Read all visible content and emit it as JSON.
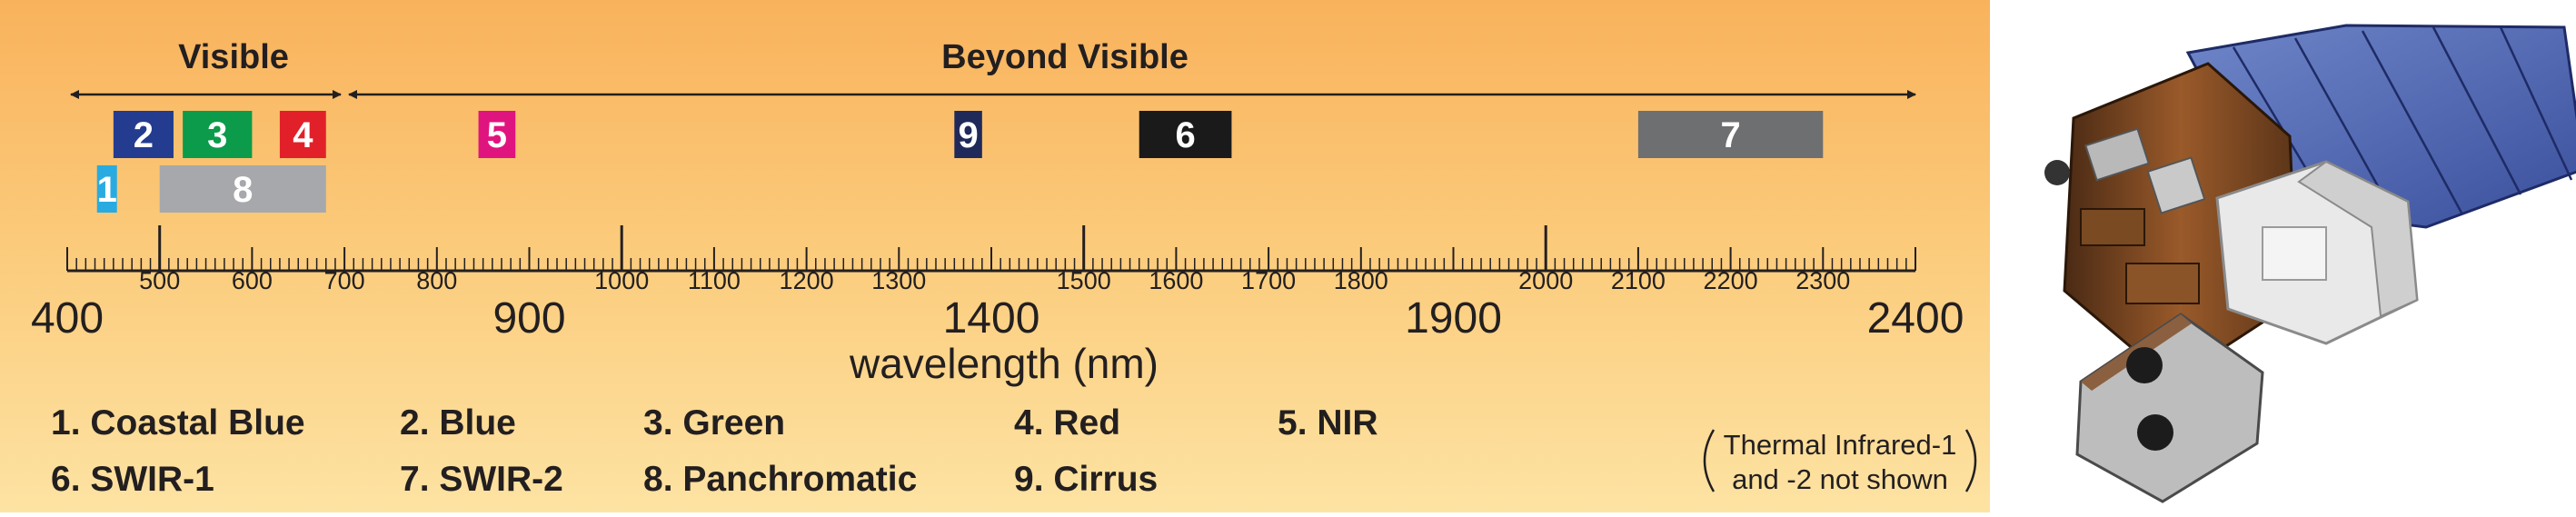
{
  "regions": {
    "visible_label": "Visible",
    "beyond_label": "Beyond Visible"
  },
  "chart_data": {
    "type": "diagram",
    "xlabel": "wavelength (nm)",
    "x_range": [
      400,
      2400
    ],
    "major_ticks": [
      400,
      900,
      1400,
      1900,
      2400
    ],
    "minor_labels": [
      500,
      600,
      700,
      800,
      1000,
      1100,
      1200,
      1300,
      1500,
      1600,
      1700,
      1800,
      2000,
      2100,
      2200,
      2300
    ],
    "bands": [
      {
        "id": "1",
        "start": 433,
        "end": 453,
        "color": "#29abe2",
        "row": 2
      },
      {
        "id": "2",
        "start": 450,
        "end": 515,
        "color": "#233c8f",
        "row": 1
      },
      {
        "id": "3",
        "start": 525,
        "end": 600,
        "color": "#0b9b4a",
        "row": 1
      },
      {
        "id": "4",
        "start": 630,
        "end": 680,
        "color": "#e2202a",
        "row": 1
      },
      {
        "id": "5",
        "start": 845,
        "end": 885,
        "color": "#e0147f",
        "row": 1
      },
      {
        "id": "6",
        "start": 1560,
        "end": 1660,
        "color": "#1a1a1a",
        "row": 1
      },
      {
        "id": "7",
        "start": 2100,
        "end": 2300,
        "color": "#6e6f71",
        "row": 1
      },
      {
        "id": "8",
        "start": 500,
        "end": 680,
        "color": "#a6a8ab",
        "row": 2
      },
      {
        "id": "9",
        "start": 1360,
        "end": 1390,
        "color": "#1f2a5a",
        "row": 1
      }
    ]
  },
  "legend": {
    "items": [
      "1. Coastal Blue",
      "2. Blue",
      "3. Green",
      "4. Red",
      "5. NIR",
      "6. SWIR-1",
      "7. SWIR-2",
      "8. Panchromatic",
      "9. Cirrus"
    ],
    "note_line1": "Thermal Infrared-1",
    "note_line2": "and -2 not shown"
  },
  "colors": {
    "bg_top": "#f9b25c",
    "bg_bottom": "#fde3a3",
    "ink": "#231f20"
  }
}
